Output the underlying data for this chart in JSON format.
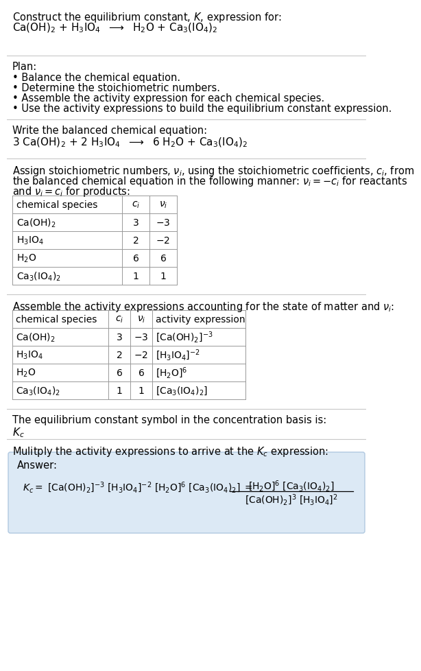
{
  "bg_color": "#ffffff",
  "answer_box_color": "#dce9f5",
  "line_color": "#c8c8c8",
  "text_color": "#000000",
  "title_line1": "Construct the equilibrium constant, $K$, expression for:",
  "title_line2": "Ca(OH)$_2$ + H$_3$IO$_4$  $\\longrightarrow$  H$_2$O + Ca$_3$(IO$_4$)$_2$",
  "plan_header": "Plan:",
  "plan_items": [
    "\\u2022 Balance the chemical equation.",
    "\\u2022 Determine the stoichiometric numbers.",
    "\\u2022 Assemble the activity expression for each chemical species.",
    "\\u2022 Use the activity expressions to build the equilibrium constant expression."
  ],
  "balanced_header": "Write the balanced chemical equation:",
  "balanced_eq": "3 Ca(OH)$_2$ + 2 H$_3$IO$_4$  $\\longrightarrow$  6 H$_2$O + Ca$_3$(IO$_4$)$_2$",
  "assign_text1": "Assign stoichiometric numbers, $\\nu_i$, using the stoichiometric coefficients, $c_i$, from",
  "assign_text2": "the balanced chemical equation in the following manner: $\\nu_i = -c_i$ for reactants",
  "assign_text3": "and $\\nu_i = c_i$ for products:",
  "table1_headers": [
    "chemical species",
    "$c_i$",
    "$\\nu_i$"
  ],
  "table1_rows": [
    [
      "Ca(OH)$_2$",
      "3",
      "$-3$"
    ],
    [
      "H$_3$IO$_4$",
      "2",
      "$-2$"
    ],
    [
      "H$_2$O",
      "6",
      "6"
    ],
    [
      "Ca$_3$(IO$_4$)$_2$",
      "1",
      "1"
    ]
  ],
  "assemble_header": "Assemble the activity expressions accounting for the state of matter and $\\nu_i$:",
  "table2_headers": [
    "chemical species",
    "$c_i$",
    "$\\nu_i$",
    "activity expression"
  ],
  "table2_rows": [
    [
      "Ca(OH)$_2$",
      "3",
      "$-3$",
      "[Ca(OH)$_2$]$^{-3}$"
    ],
    [
      "H$_3$IO$_4$",
      "2",
      "$-2$",
      "[H$_3$IO$_4$]$^{-2}$"
    ],
    [
      "H$_2$O",
      "6",
      "6",
      "[H$_2$O]$^6$"
    ],
    [
      "Ca$_3$(IO$_4$)$_2$",
      "1",
      "1",
      "[Ca$_3$(IO$_4$)$_2$]"
    ]
  ],
  "kc_header": "The equilibrium constant symbol in the concentration basis is:",
  "kc_symbol": "$K_c$",
  "multiply_header": "Mulitply the activity expressions to arrive at the $K_c$ expression:",
  "answer_label": "Answer:",
  "kc_expr_full": "$K_c = $ [Ca(OH)$_2$]$^{-3}$ [H$_3$IO$_4$]$^{-2}$ [H$_2$O]$^6$ [Ca$_3$(IO$_4$)$_2$] $=$",
  "kc_num": "[H$_2$O]$^6$ [Ca$_3$(IO$_4$)$_2$]",
  "kc_den": "[Ca(OH)$_2$]$^3$ [H$_3$IO$_4$]$^2$"
}
